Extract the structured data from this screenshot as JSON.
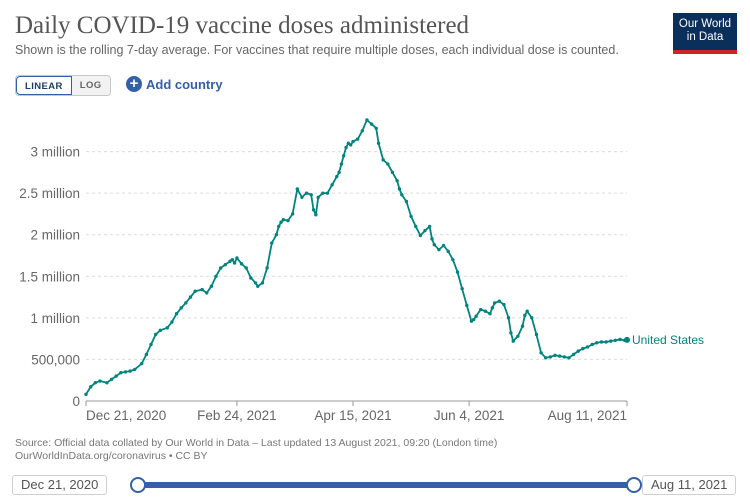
{
  "header": {
    "title": "Daily COVID-19 vaccine doses administered",
    "subtitle": "Shown is the rolling 7-day average. For vaccines that require multiple doses, each individual dose is counted."
  },
  "logo": {
    "line1": "Our World",
    "line2": "in Data"
  },
  "controls": {
    "linear_label": "LINEAR",
    "log_label": "LOG",
    "add_country_label": "Add country"
  },
  "colors": {
    "series": "#00847e",
    "accent": "#3360a9",
    "logo_bg": "#0b2f5b",
    "logo_bar": "#ce261e"
  },
  "chart_data": {
    "type": "line",
    "title": "Daily COVID-19 vaccine doses administered",
    "xlabel": "",
    "ylabel": "",
    "x_range": [
      0,
      233
    ],
    "ylim": [
      0,
      3500000
    ],
    "y_ticks": [
      0,
      500000,
      1000000,
      1500000,
      2000000,
      2500000,
      3000000
    ],
    "y_tick_labels": [
      "0",
      "500,000",
      "1 million",
      "1.5 million",
      "2 million",
      "2.5 million",
      "3 million"
    ],
    "x_ticks": [
      0,
      65,
      115,
      165,
      233
    ],
    "x_tick_labels": [
      "Dec 21, 2020",
      "Feb 24, 2021",
      "Apr 15, 2021",
      "Jun 4, 2021",
      "Aug 11, 2021"
    ],
    "grid": true,
    "series": [
      {
        "name": "United States",
        "x": [
          0,
          2,
          4,
          6,
          9,
          11,
          13,
          15,
          17,
          19,
          21,
          24,
          26,
          28,
          30,
          32,
          35,
          37,
          39,
          41,
          43,
          45,
          47,
          50,
          52,
          54,
          56,
          58,
          60,
          62,
          63,
          64,
          65,
          67,
          69,
          71,
          73,
          74,
          76,
          78,
          80,
          82,
          83,
          84,
          85,
          87,
          89,
          91,
          93,
          95,
          97,
          98,
          99,
          100,
          102,
          104,
          106,
          108,
          109,
          110,
          111,
          112,
          113,
          114,
          115,
          117,
          119,
          121,
          123,
          125,
          126,
          128,
          130,
          132,
          134,
          135,
          136,
          138,
          140,
          142,
          144,
          146,
          148,
          149,
          150,
          152,
          154,
          156,
          158,
          160,
          162,
          164,
          166,
          167,
          168,
          170,
          172,
          174,
          175,
          176,
          178,
          180,
          182,
          183,
          184,
          186,
          188,
          189,
          190,
          192,
          194,
          196,
          198,
          200,
          202,
          204,
          206,
          208,
          210,
          212,
          214,
          216,
          218,
          220,
          222,
          224,
          226,
          228,
          230,
          232,
          233
        ],
        "values": [
          80000,
          170000,
          220000,
          240000,
          220000,
          260000,
          300000,
          340000,
          350000,
          360000,
          380000,
          450000,
          560000,
          680000,
          800000,
          850000,
          880000,
          950000,
          1050000,
          1120000,
          1180000,
          1250000,
          1320000,
          1340000,
          1300000,
          1380000,
          1500000,
          1600000,
          1640000,
          1680000,
          1700000,
          1660000,
          1720000,
          1650000,
          1600000,
          1480000,
          1420000,
          1380000,
          1420000,
          1600000,
          1900000,
          2000000,
          2100000,
          2150000,
          2180000,
          2170000,
          2250000,
          2550000,
          2450000,
          2500000,
          2480000,
          2300000,
          2240000,
          2450000,
          2500000,
          2500000,
          2600000,
          2700000,
          2750000,
          2850000,
          2950000,
          3050000,
          3100000,
          3080000,
          3120000,
          3150000,
          3250000,
          3380000,
          3330000,
          3280000,
          3100000,
          2900000,
          2850000,
          2750000,
          2650000,
          2550000,
          2480000,
          2400000,
          2220000,
          2100000,
          1990000,
          2050000,
          2100000,
          1950000,
          1880000,
          1820000,
          1870000,
          1800000,
          1700000,
          1550000,
          1350000,
          1150000,
          960000,
          980000,
          1020000,
          1100000,
          1080000,
          1050000,
          1120000,
          1180000,
          1200000,
          1160000,
          1000000,
          820000,
          720000,
          780000,
          900000,
          1030000,
          1080000,
          1000000,
          800000,
          580000,
          520000,
          530000,
          550000,
          540000,
          530000,
          520000,
          560000,
          600000,
          630000,
          650000,
          680000,
          700000,
          710000,
          710000,
          720000,
          730000,
          740000,
          730000,
          735000
        ]
      }
    ]
  },
  "source": {
    "line1": "Source: Official data collated by Our World in Data – Last updated 13 August 2021, 09:20 (London time)",
    "line2": "OurWorldInData.org/coronavirus • CC BY"
  },
  "timeline": {
    "start_label": "Dec 21, 2020",
    "end_label": "Aug 11, 2021"
  }
}
